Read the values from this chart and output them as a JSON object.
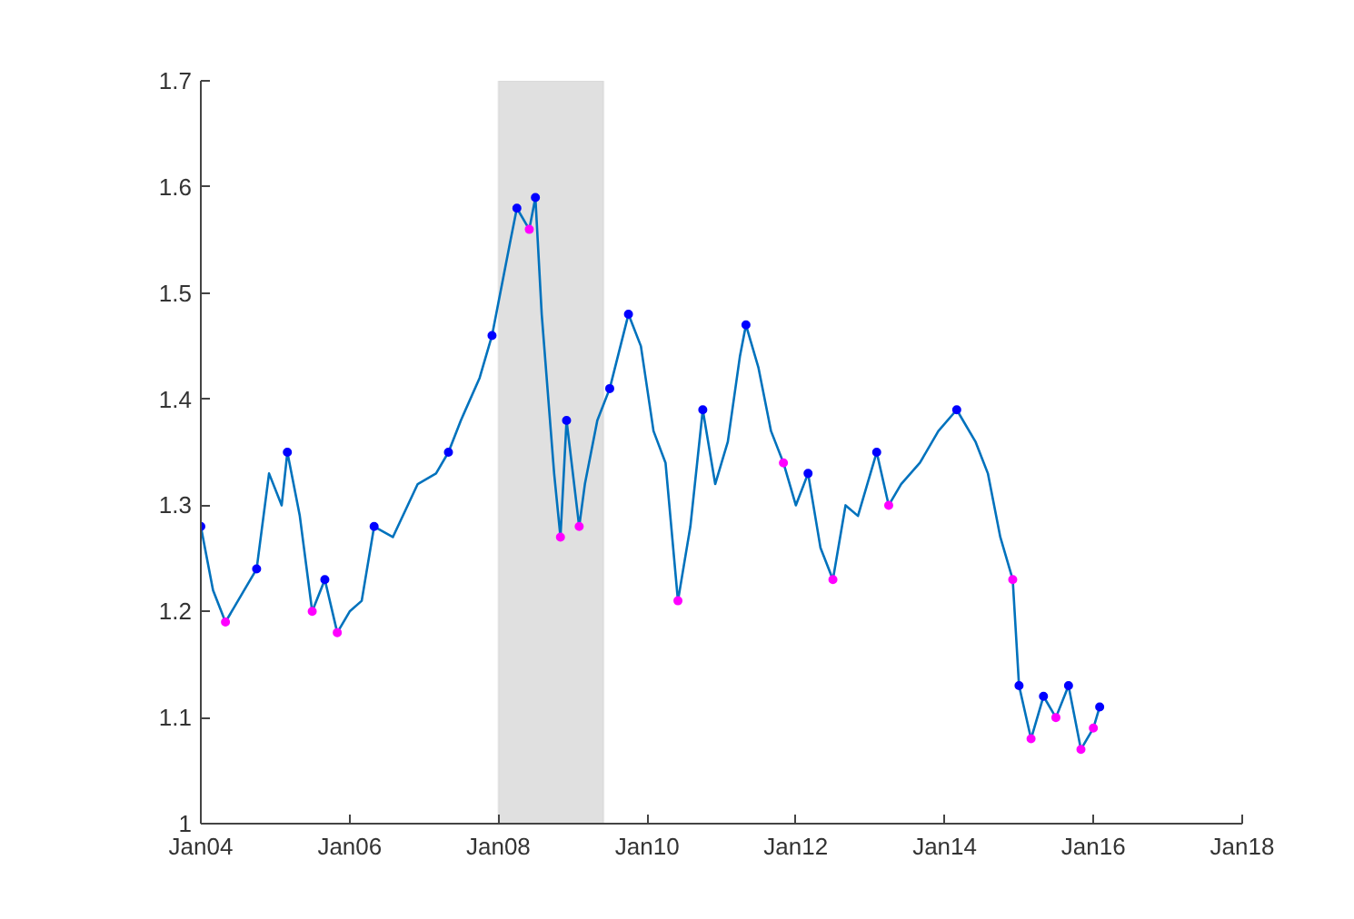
{
  "chart_data": {
    "type": "line",
    "xlim": [
      "2004-01",
      "2018-01"
    ],
    "xticks": [
      {
        "value": "2004-01",
        "label": "Jan04"
      },
      {
        "value": "2006-01",
        "label": "Jan06"
      },
      {
        "value": "2008-01",
        "label": "Jan08"
      },
      {
        "value": "2010-01",
        "label": "Jan10"
      },
      {
        "value": "2012-01",
        "label": "Jan12"
      },
      {
        "value": "2014-01",
        "label": "Jan14"
      },
      {
        "value": "2016-01",
        "label": "Jan16"
      },
      {
        "value": "2018-01",
        "label": "Jan18"
      }
    ],
    "ylim": [
      1,
      1.7
    ],
    "yticks": [
      1,
      1.1,
      1.2,
      1.3,
      1.4,
      1.5,
      1.6,
      1.7
    ],
    "grid": false,
    "bands": [
      {
        "axis": "x",
        "from": "2008-01",
        "to": "2009-06",
        "color": "#e0e0e0"
      }
    ],
    "series": [
      {
        "color": "#0072bd",
        "marker": "none",
        "x": [
          "2004-01",
          "2004-03",
          "2004-05",
          "2004-08",
          "2004-10",
          "2004-12",
          "2005-02",
          "2005-03",
          "2005-05",
          "2005-07",
          "2005-09",
          "2005-11",
          "2006-01",
          "2006-03",
          "2006-05",
          "2006-08",
          "2006-12",
          "2007-03",
          "2007-05",
          "2007-07",
          "2007-10",
          "2007-12",
          "2008-03",
          "2008-04",
          "2008-06",
          "2008-07",
          "2008-08",
          "2008-10",
          "2008-11",
          "2008-12",
          "2009-02",
          "2009-03",
          "2009-05",
          "2009-07",
          "2009-10",
          "2009-12",
          "2010-02",
          "2010-04",
          "2010-06",
          "2010-08",
          "2010-10",
          "2010-12",
          "2011-02",
          "2011-04",
          "2011-05",
          "2011-07",
          "2011-09",
          "2011-11",
          "2012-01",
          "2012-03",
          "2012-05",
          "2012-07",
          "2012-09",
          "2012-11",
          "2013-02",
          "2013-04",
          "2013-06",
          "2013-09",
          "2013-12",
          "2014-03",
          "2014-06",
          "2014-08",
          "2014-10",
          "2014-12",
          "2015-01",
          "2015-03",
          "2015-05",
          "2015-07",
          "2015-09",
          "2015-11",
          "2016-01",
          "2016-02"
        ],
        "values": [
          1.28,
          1.22,
          1.19,
          1.22,
          1.24,
          1.33,
          1.3,
          1.35,
          1.29,
          1.2,
          1.23,
          1.18,
          1.2,
          1.21,
          1.28,
          1.27,
          1.32,
          1.33,
          1.35,
          1.38,
          1.42,
          1.46,
          1.55,
          1.58,
          1.56,
          1.59,
          1.48,
          1.33,
          1.27,
          1.38,
          1.28,
          1.32,
          1.38,
          1.41,
          1.48,
          1.45,
          1.37,
          1.34,
          1.21,
          1.28,
          1.39,
          1.32,
          1.36,
          1.44,
          1.47,
          1.43,
          1.37,
          1.34,
          1.3,
          1.33,
          1.26,
          1.23,
          1.3,
          1.29,
          1.35,
          1.3,
          1.32,
          1.34,
          1.37,
          1.39,
          1.36,
          1.33,
          1.27,
          1.23,
          1.13,
          1.08,
          1.12,
          1.1,
          1.13,
          1.07,
          1.09,
          1.11
        ]
      },
      {
        "type": "scatter",
        "color": "#0000ff",
        "marker": "circle",
        "x": [
          "2004-01",
          "2004-10",
          "2005-03",
          "2005-09",
          "2006-05",
          "2007-05",
          "2007-12",
          "2008-04",
          "2008-07",
          "2008-12",
          "2009-07",
          "2009-10",
          "2010-10",
          "2011-05",
          "2012-03",
          "2013-02",
          "2014-03",
          "2015-01",
          "2015-05",
          "2015-09",
          "2016-02"
        ],
        "values": [
          1.28,
          1.24,
          1.35,
          1.23,
          1.28,
          1.35,
          1.46,
          1.58,
          1.59,
          1.38,
          1.41,
          1.48,
          1.39,
          1.47,
          1.33,
          1.35,
          1.39,
          1.13,
          1.12,
          1.13,
          1.11
        ]
      },
      {
        "type": "scatter",
        "color": "#ff00ff",
        "marker": "circle",
        "x": [
          "2004-05",
          "2005-07",
          "2005-11",
          "2008-06",
          "2008-11",
          "2009-02",
          "2010-06",
          "2011-11",
          "2012-07",
          "2013-04",
          "2014-12",
          "2015-03",
          "2015-07",
          "2015-11",
          "2016-01"
        ],
        "values": [
          1.19,
          1.2,
          1.18,
          1.56,
          1.27,
          1.28,
          1.21,
          1.34,
          1.23,
          1.3,
          1.23,
          1.08,
          1.1,
          1.07,
          1.09
        ]
      }
    ]
  }
}
